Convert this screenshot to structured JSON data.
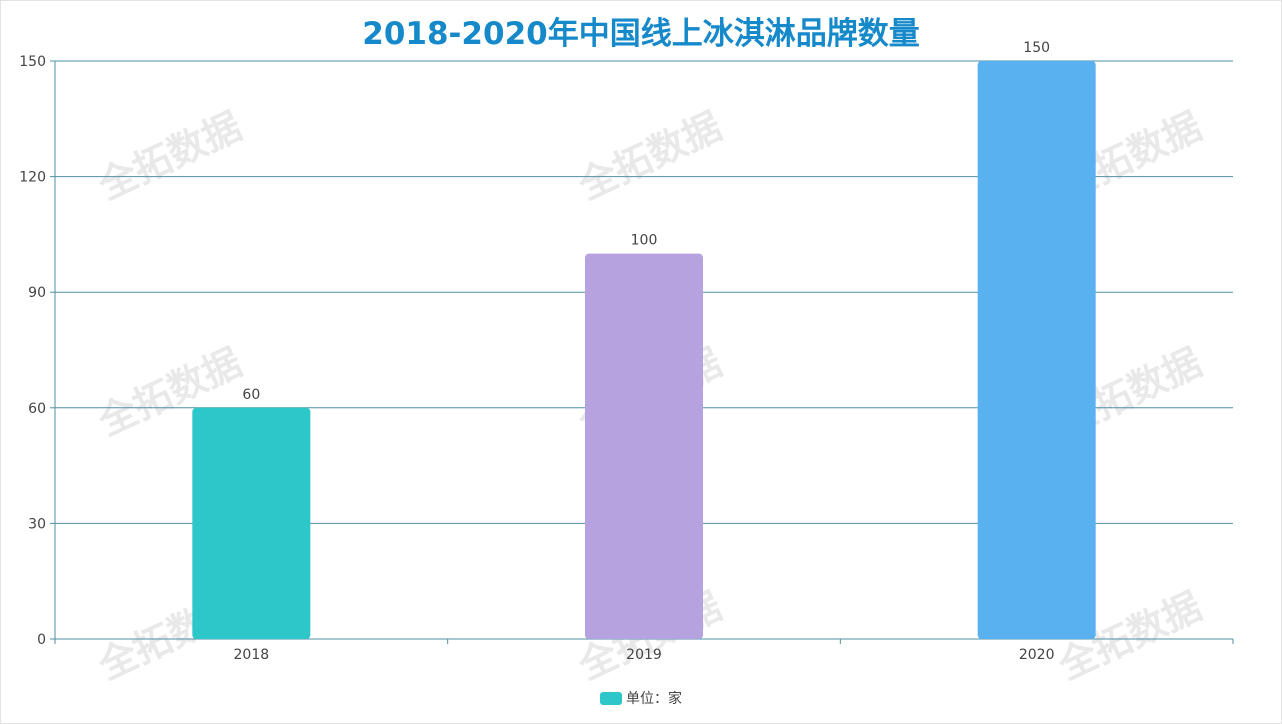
{
  "watermark": "全拓数据",
  "chart_data": {
    "type": "bar",
    "title": "2018-2020年中国线上冰淇淋品牌数量",
    "categories": [
      "2018",
      "2019",
      "2020"
    ],
    "values": [
      60,
      100,
      150
    ],
    "data_labels": [
      "60",
      "100",
      "150"
    ],
    "bar_colors": [
      "#2ec7c9",
      "#b6a2de",
      "#5ab1ef"
    ],
    "ylim": [
      0,
      150
    ],
    "yticks": [
      "0",
      "30",
      "60",
      "90",
      "120",
      "150"
    ],
    "grid": true,
    "legend": {
      "label": "单位：家",
      "color": "#2ec7c9",
      "position": "bottom-center"
    },
    "axis_color": "#4f8fa6"
  }
}
